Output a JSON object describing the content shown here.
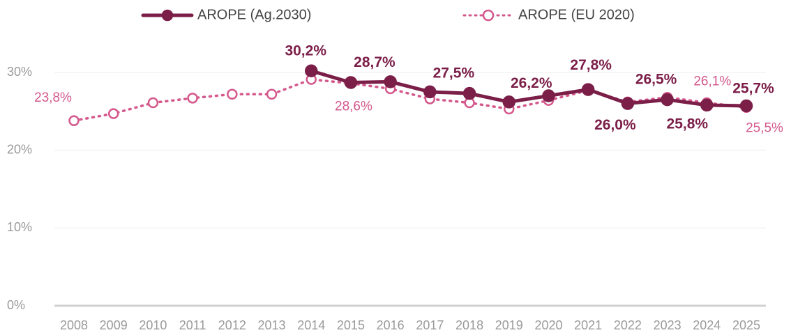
{
  "chart_data": {
    "type": "line",
    "categories": [
      "2008",
      "2009",
      "2010",
      "2011",
      "2012",
      "2013",
      "2014",
      "2015",
      "2016",
      "2017",
      "2018",
      "2019",
      "2020",
      "2021",
      "2022",
      "2023",
      "2024",
      "2025"
    ],
    "series": [
      {
        "name": "AROPE (Ag.2030)",
        "color": "#7b1e48",
        "values": [
          null,
          null,
          null,
          null,
          null,
          null,
          30.2,
          28.7,
          28.8,
          27.5,
          27.3,
          26.2,
          27.0,
          27.8,
          26.0,
          26.5,
          25.8,
          25.7
        ],
        "value_labels": [
          null,
          null,
          null,
          null,
          null,
          null,
          "30,2%",
          "28,7%",
          null,
          "27,5%",
          null,
          "26,2%",
          null,
          "27,8%",
          "26,0%",
          "26,5%",
          "25,8%",
          "25,7%"
        ]
      },
      {
        "name": "AROPE (EU 2020)",
        "color": "#d4588c",
        "values": [
          23.8,
          24.7,
          26.1,
          26.7,
          27.2,
          27.2,
          29.1,
          28.6,
          27.9,
          26.6,
          26.1,
          25.3,
          26.4,
          27.7,
          26.2,
          26.8,
          26.1,
          25.5
        ],
        "value_labels": [
          "23,8%",
          null,
          null,
          null,
          null,
          null,
          null,
          "28,6%",
          null,
          null,
          null,
          null,
          null,
          null,
          null,
          null,
          "26,1%",
          "25,5%"
        ]
      }
    ],
    "ylim": [
      0,
      30
    ],
    "yticks": [
      {
        "value": 0,
        "label": "0%"
      },
      {
        "value": 10,
        "label": "10%"
      },
      {
        "value": 20,
        "label": "20%"
      },
      {
        "value": 30,
        "label": "30%"
      }
    ],
    "grid": true,
    "legend": "top"
  }
}
